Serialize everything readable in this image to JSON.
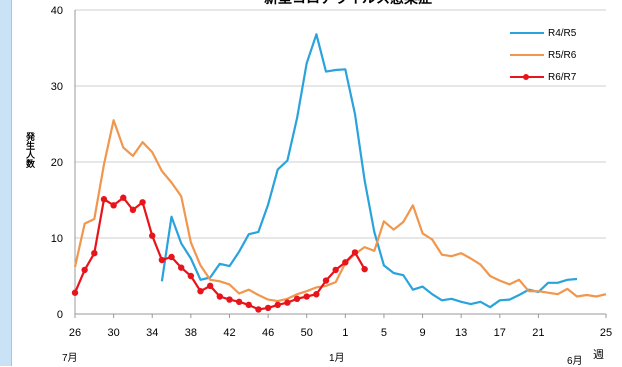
{
  "chart_data": {
    "type": "line",
    "title": "新型コロナウイルス感染症",
    "ylabel": "発生人数",
    "xlabel": "週",
    "ylim": [
      0,
      40
    ],
    "yticks": [
      0,
      10,
      20,
      30,
      40
    ],
    "grid": true,
    "legend_position": "top-right",
    "x_tick_labels": [
      "26",
      "30",
      "34",
      "38",
      "42",
      "46",
      "50",
      "1",
      "5",
      "9",
      "13",
      "17",
      "21",
      "25"
    ],
    "month_labels": [
      "7月",
      "1月",
      "6月"
    ],
    "series": [
      {
        "name": "R4/R5",
        "color": "#29a3dc",
        "marker": false,
        "start_index": 9,
        "values": [
          4.3,
          12.8,
          9.3,
          7.3,
          4.5,
          4.8,
          6.6,
          6.3,
          8.2,
          10.5,
          10.8,
          14.4,
          19.0,
          20.2,
          25.8,
          33.0,
          36.8,
          31.9,
          32.1,
          32.2,
          26.3,
          17.6,
          10.8,
          6.4,
          5.4,
          5.1,
          3.2,
          3.6,
          2.6,
          1.8,
          2.0,
          1.6,
          1.3,
          1.6,
          0.9,
          1.8,
          1.9,
          2.5,
          3.2,
          2.9,
          4.1,
          4.1,
          4.5,
          4.6
        ]
      },
      {
        "name": "R5/R6",
        "color": "#f1964d",
        "marker": false,
        "start_index": 0,
        "values": [
          6.2,
          11.9,
          12.5,
          19.7,
          25.5,
          21.9,
          20.8,
          22.6,
          21.3,
          18.8,
          17.3,
          15.5,
          9.4,
          6.4,
          4.5,
          4.3,
          3.9,
          2.7,
          3.2,
          2.5,
          1.9,
          1.7,
          2.0,
          2.6,
          3.0,
          3.5,
          3.7,
          4.2,
          6.7,
          7.9,
          8.8,
          8.3,
          12.2,
          11.1,
          12.1,
          14.3,
          10.6,
          9.8,
          7.8,
          7.6,
          8.0,
          7.3,
          6.5,
          5.0,
          4.4,
          3.9,
          4.5,
          3.0,
          3.0,
          2.8,
          2.6,
          3.3,
          2.3,
          2.5,
          2.3,
          2.6
        ]
      },
      {
        "name": "R6/R7",
        "color": "#e8141c",
        "marker": true,
        "start_index": 0,
        "values": [
          2.8,
          5.8,
          8.0,
          15.1,
          14.3,
          15.3,
          13.7,
          14.7,
          10.3,
          7.1,
          7.5,
          6.1,
          5.0,
          3.0,
          3.7,
          2.3,
          1.9,
          1.6,
          1.2,
          0.6,
          0.8,
          1.2,
          1.5,
          2.0,
          2.3,
          2.6,
          4.4,
          5.8,
          6.8,
          8.1,
          5.9
        ]
      }
    ]
  }
}
